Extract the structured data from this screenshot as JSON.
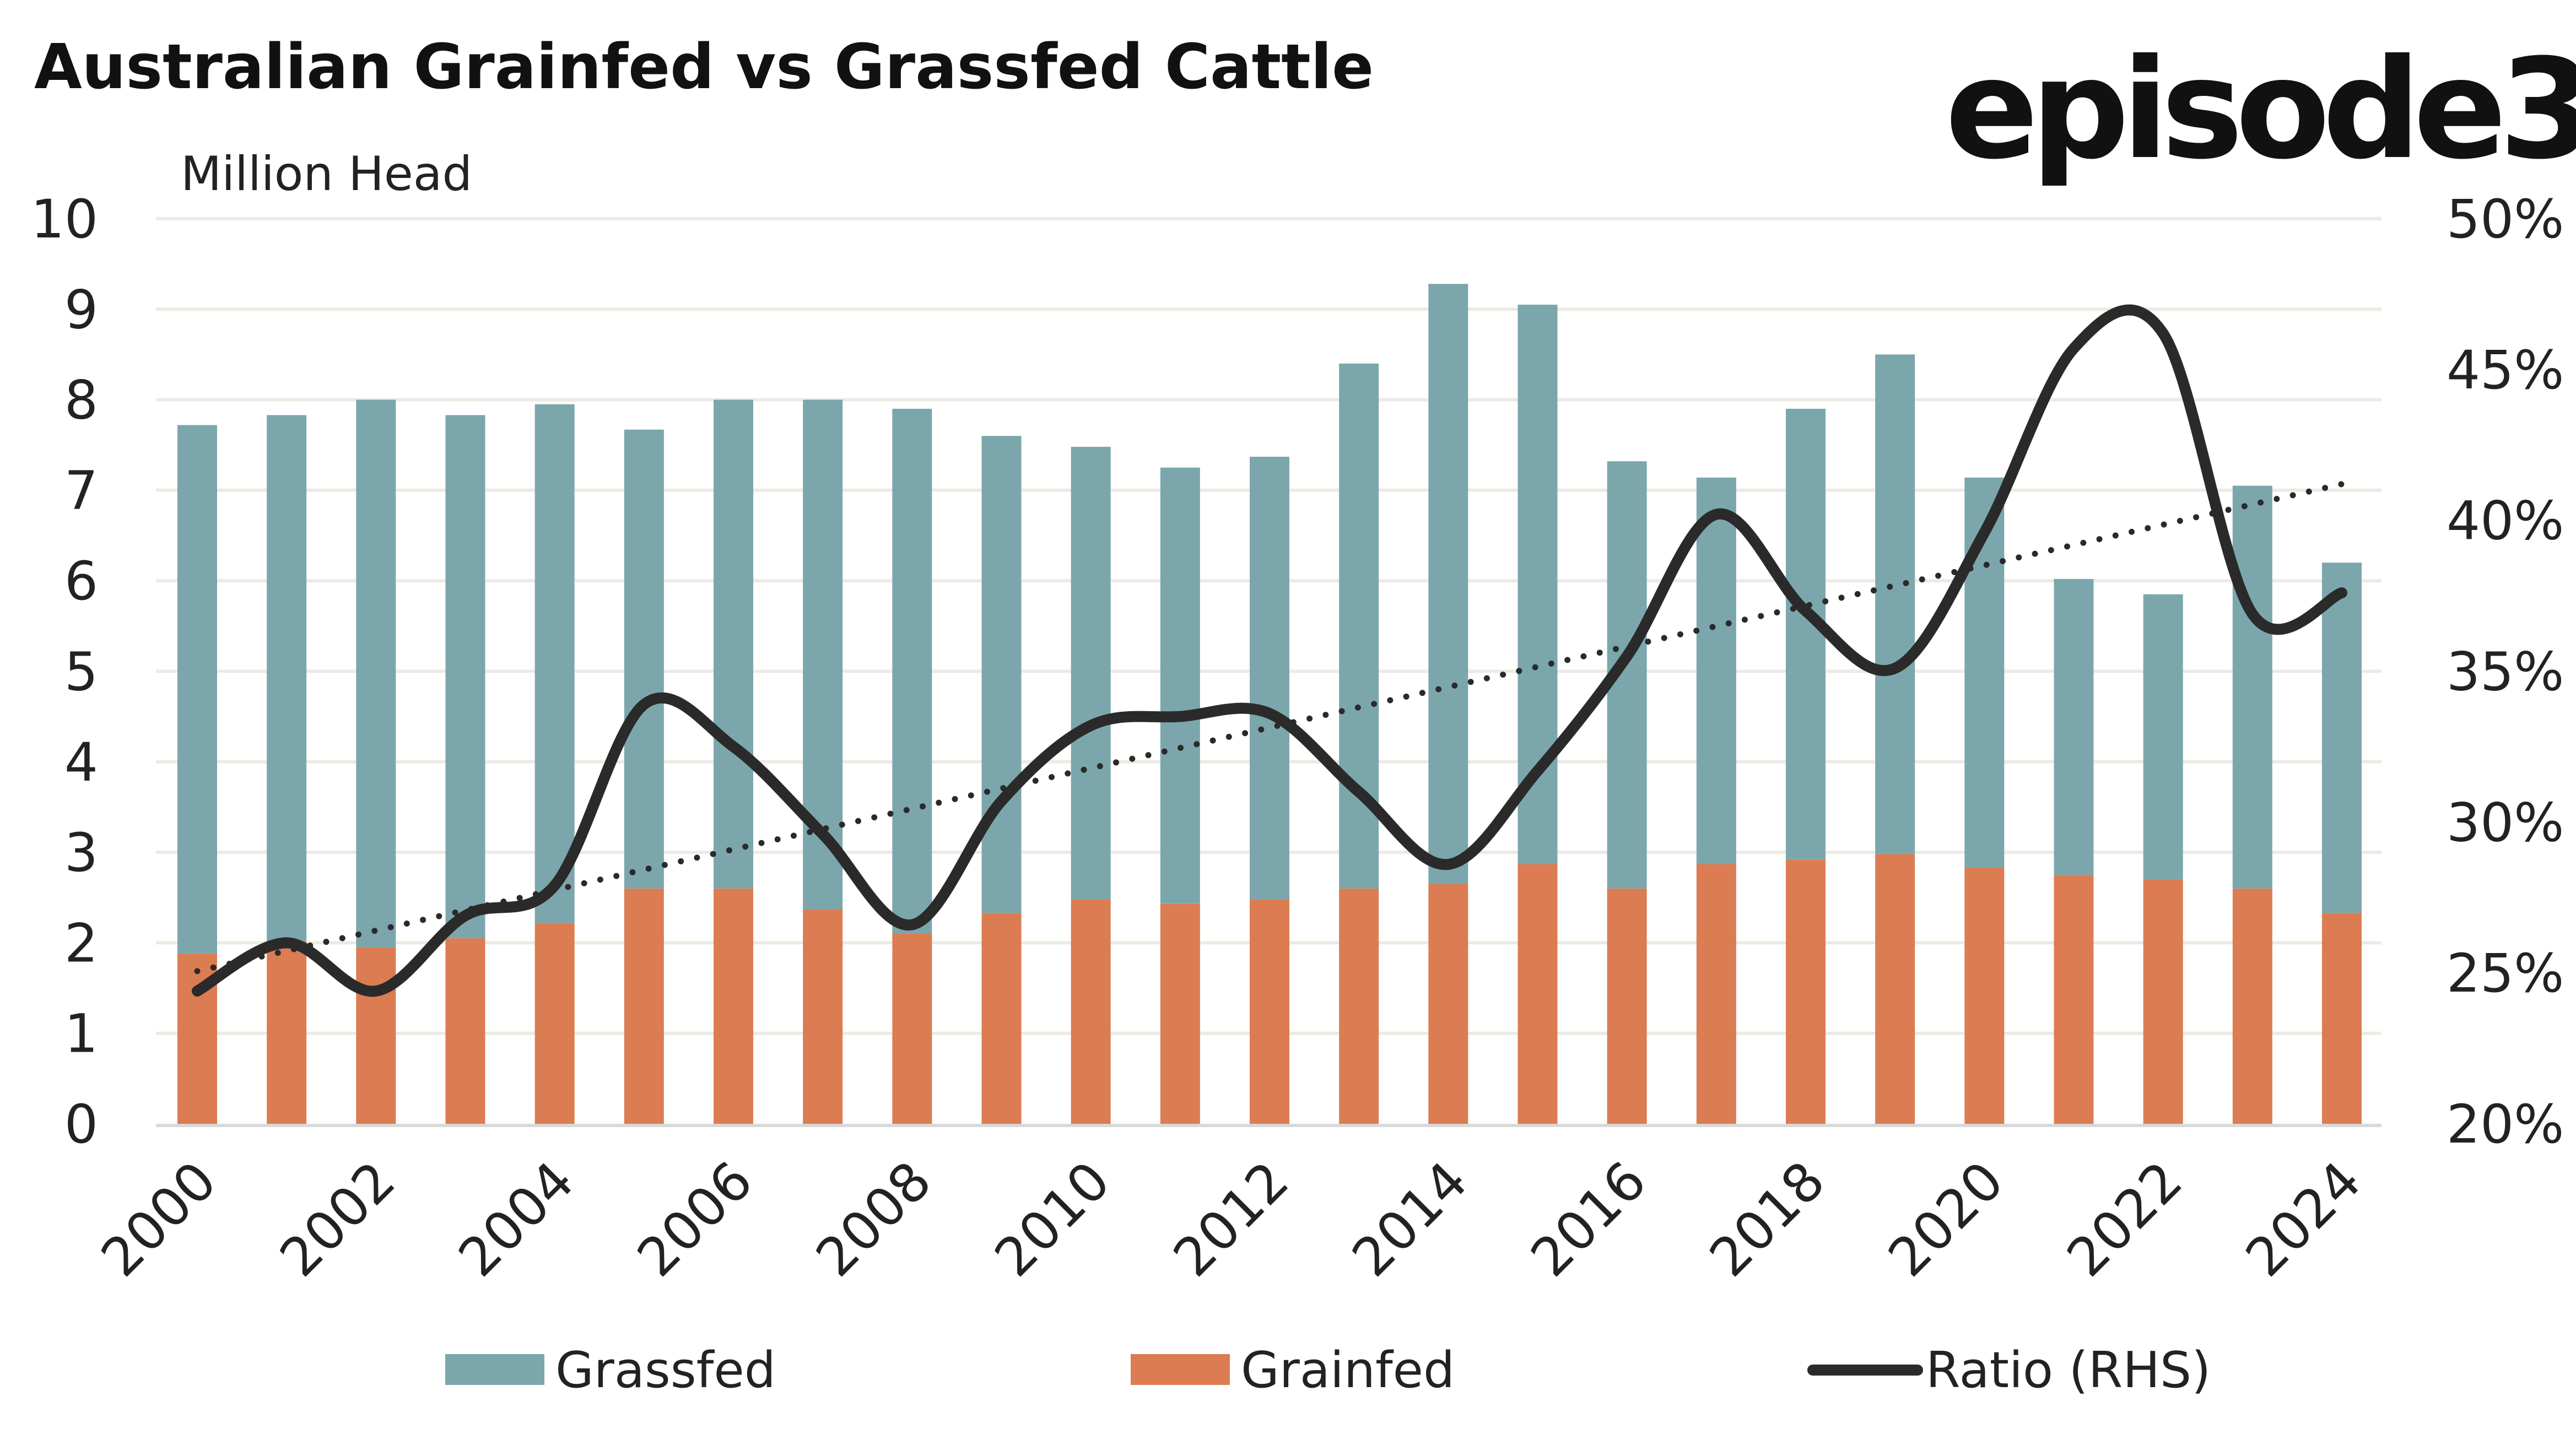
{
  "chart_data": {
    "type": "bar",
    "stacked": true,
    "title": "Australian Grainfed vs Grassfed Cattle",
    "ylabel": "Million Head",
    "ylim": [
      0,
      10
    ],
    "yticks": [
      0,
      1,
      2,
      3,
      4,
      5,
      6,
      7,
      8,
      9,
      10
    ],
    "y2lim": [
      20,
      50
    ],
    "y2ticks": [
      "20%",
      "25%",
      "30%",
      "35%",
      "40%",
      "45%",
      "50%"
    ],
    "xtick_labels": [
      "2000",
      "2002",
      "2004",
      "2006",
      "2008",
      "2010",
      "2012",
      "2014",
      "2016",
      "2018",
      "2020",
      "2022",
      "2024"
    ],
    "categories": [
      2000,
      2001,
      2002,
      2003,
      2004,
      2005,
      2006,
      2007,
      2008,
      2009,
      2010,
      2011,
      2012,
      2013,
      2014,
      2015,
      2016,
      2017,
      2018,
      2019,
      2020,
      2021,
      2022,
      2023,
      2024
    ],
    "series": [
      {
        "name": "Grainfed",
        "type": "bar",
        "axis": "left",
        "color": "#dc7c52",
        "values": [
          1.88,
          2.02,
          1.95,
          2.05,
          2.22,
          2.6,
          2.6,
          2.37,
          2.1,
          2.33,
          2.48,
          2.43,
          2.48,
          2.6,
          2.65,
          2.87,
          2.6,
          2.87,
          2.92,
          2.98,
          2.83,
          2.75,
          2.7,
          2.6,
          2.33
        ]
      },
      {
        "name": "Grassfed",
        "type": "bar",
        "axis": "left",
        "color": "#7ba7ac",
        "values": [
          5.84,
          5.81,
          6.05,
          5.78,
          5.73,
          5.07,
          5.4,
          5.63,
          5.8,
          5.27,
          5.0,
          4.82,
          4.89,
          5.8,
          6.63,
          6.18,
          4.72,
          4.27,
          4.98,
          5.52,
          4.31,
          3.27,
          3.15,
          4.45,
          3.87
        ]
      },
      {
        "name": "Ratio (RHS)",
        "type": "line",
        "axis": "right",
        "unit": "%",
        "color": "#2a2a2a",
        "smooth": true,
        "trendline": "linear, dotted",
        "values": [
          24.4,
          26.0,
          24.4,
          26.9,
          27.9,
          33.9,
          32.5,
          29.6,
          26.6,
          30.7,
          33.2,
          33.5,
          33.6,
          31.0,
          28.6,
          31.7,
          35.5,
          40.2,
          37.0,
          35.1,
          39.6,
          45.7,
          46.2,
          36.9,
          37.6
        ]
      }
    ],
    "grid": "horizontal",
    "legend": "bottom",
    "gridline_color": "#ecebe2"
  },
  "legend": [
    {
      "label": "Grassfed",
      "color": "#7ba7ac",
      "kind": "box"
    },
    {
      "label": "Grainfed",
      "color": "#dc7c52",
      "kind": "box"
    },
    {
      "label": "Ratio (RHS)",
      "color": "#2a2a2a",
      "kind": "line"
    }
  ],
  "logo": "episode3"
}
